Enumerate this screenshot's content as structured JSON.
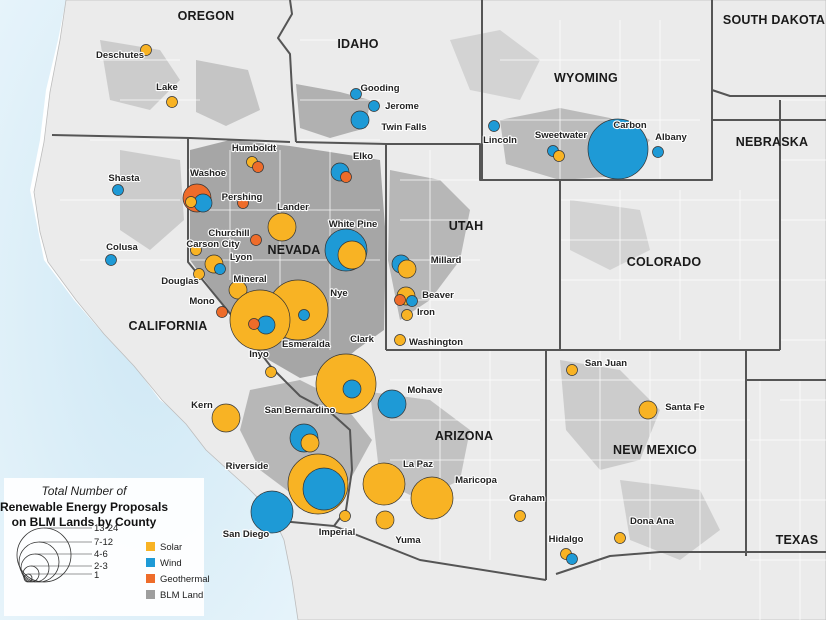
{
  "colors": {
    "solar": "#F8B324",
    "wind": "#1E9AD6",
    "geothermal": "#EE6C2A",
    "blm": "#9e9e9e",
    "ocean": "#cfe8f5",
    "land": "#ececec",
    "border": "#5a5a5a"
  },
  "states": [
    {
      "id": "oregon",
      "label": "OREGON"
    },
    {
      "id": "idaho",
      "label": "IDAHO"
    },
    {
      "id": "wyoming",
      "label": "WYOMING"
    },
    {
      "id": "south-dakota",
      "label": "SOUTH DAKOTA"
    },
    {
      "id": "nebraska",
      "label": "NEBRASKA"
    },
    {
      "id": "nevada",
      "label": "NEVADA"
    },
    {
      "id": "utah",
      "label": "UTAH"
    },
    {
      "id": "colorado",
      "label": "COLORADO"
    },
    {
      "id": "california",
      "label": "CALIFORNIA"
    },
    {
      "id": "arizona",
      "label": "ARIZONA"
    },
    {
      "id": "new-mexico",
      "label": "NEW MEXICO"
    },
    {
      "id": "texas",
      "label": "TEXAS"
    }
  ],
  "counties": [
    {
      "name": "Deschutes",
      "proposals": [
        {
          "type": "solar",
          "count": 1
        }
      ]
    },
    {
      "name": "Lake",
      "proposals": [
        {
          "type": "solar",
          "count": 1
        }
      ]
    },
    {
      "name": "Gooding",
      "proposals": [
        {
          "type": "wind",
          "count": 1
        }
      ]
    },
    {
      "name": "Jerome",
      "proposals": [
        {
          "type": "wind",
          "count": 1
        }
      ]
    },
    {
      "name": "Twin Falls",
      "proposals": [
        {
          "type": "wind",
          "count": 3
        }
      ]
    },
    {
      "name": "Lincoln",
      "proposals": [
        {
          "type": "wind",
          "count": 1
        }
      ]
    },
    {
      "name": "Sweetwater",
      "proposals": [
        {
          "type": "wind",
          "count": 1
        },
        {
          "type": "solar",
          "count": 1
        }
      ]
    },
    {
      "name": "Carbon",
      "proposals": [
        {
          "type": "wind",
          "count": 13
        }
      ]
    },
    {
      "name": "Albany",
      "proposals": [
        {
          "type": "wind",
          "count": 1
        }
      ]
    },
    {
      "name": "Humboldt",
      "proposals": [
        {
          "type": "solar",
          "count": 1
        },
        {
          "type": "geothermal",
          "count": 1
        }
      ]
    },
    {
      "name": "Elko",
      "proposals": [
        {
          "type": "wind",
          "count": 3
        },
        {
          "type": "geothermal",
          "count": 1
        }
      ]
    },
    {
      "name": "Shasta",
      "proposals": [
        {
          "type": "wind",
          "count": 1
        }
      ]
    },
    {
      "name": "Washoe",
      "proposals": [
        {
          "type": "solar",
          "count": 1
        },
        {
          "type": "wind",
          "count": 3
        },
        {
          "type": "geothermal",
          "count": 6
        }
      ]
    },
    {
      "name": "Pershing",
      "proposals": [
        {
          "type": "geothermal",
          "count": 1
        }
      ]
    },
    {
      "name": "Lander",
      "proposals": [
        {
          "type": "solar",
          "count": 4
        }
      ]
    },
    {
      "name": "Churchill",
      "proposals": [
        {
          "type": "geothermal",
          "count": 1
        }
      ]
    },
    {
      "name": "White Pine",
      "proposals": [
        {
          "type": "solar",
          "count": 5
        },
        {
          "type": "wind",
          "count": 7
        }
      ]
    },
    {
      "name": "Colusa",
      "proposals": [
        {
          "type": "wind",
          "count": 1
        }
      ]
    },
    {
      "name": "Carson City",
      "proposals": [
        {
          "type": "solar",
          "count": 1
        }
      ]
    },
    {
      "name": "Lyon",
      "proposals": [
        {
          "type": "solar",
          "count": 3
        },
        {
          "type": "wind",
          "count": 1
        }
      ]
    },
    {
      "name": "Millard",
      "proposals": [
        {
          "type": "solar",
          "count": 2
        },
        {
          "type": "wind",
          "count": 3
        }
      ]
    },
    {
      "name": "Douglas",
      "proposals": [
        {
          "type": "solar",
          "count": 1
        }
      ]
    },
    {
      "name": "Mineral",
      "proposals": [
        {
          "type": "solar",
          "count": 3
        }
      ]
    },
    {
      "name": "Nye",
      "proposals": [
        {
          "type": "solar",
          "count": 18
        },
        {
          "type": "wind",
          "count": 1
        }
      ]
    },
    {
      "name": "Beaver",
      "proposals": [
        {
          "type": "solar",
          "count": 3
        },
        {
          "type": "wind",
          "count": 1
        },
        {
          "type": "geothermal",
          "count": 1
        }
      ]
    },
    {
      "name": "Mono",
      "proposals": [
        {
          "type": "geothermal",
          "count": 1
        }
      ]
    },
    {
      "name": "Esmeralda",
      "proposals": [
        {
          "type": "solar",
          "count": 13
        },
        {
          "type": "wind",
          "count": 3
        },
        {
          "type": "geothermal",
          "count": 1
        }
      ]
    },
    {
      "name": "Iron",
      "proposals": [
        {
          "type": "solar",
          "count": 1
        }
      ]
    },
    {
      "name": "Washington",
      "proposals": [
        {
          "type": "solar",
          "count": 1
        }
      ]
    },
    {
      "name": "Inyo",
      "proposals": [
        {
          "type": "solar",
          "count": 1
        }
      ]
    },
    {
      "name": "Clark",
      "proposals": [
        {
          "type": "solar",
          "count": 24
        },
        {
          "type": "wind",
          "count": 2
        }
      ]
    },
    {
      "name": "Mohave",
      "proposals": [
        {
          "type": "wind",
          "count": 4
        }
      ]
    },
    {
      "name": "Kern",
      "proposals": [
        {
          "type": "solar",
          "count": 4
        }
      ]
    },
    {
      "name": "San Bernardino",
      "proposals": [
        {
          "type": "solar",
          "count": 3
        },
        {
          "type": "wind",
          "count": 6
        }
      ]
    },
    {
      "name": "Riverside",
      "proposals": [
        {
          "type": "solar",
          "count": 22
        },
        {
          "type": "wind",
          "count": 12
        }
      ]
    },
    {
      "name": "La Paz",
      "proposals": [
        {
          "type": "solar",
          "count": 7
        }
      ]
    },
    {
      "name": "Maricopa",
      "proposals": [
        {
          "type": "solar",
          "count": 8
        }
      ]
    },
    {
      "name": "San Diego",
      "proposals": [
        {
          "type": "wind",
          "count": 9
        }
      ]
    },
    {
      "name": "Imperial",
      "proposals": [
        {
          "type": "solar",
          "count": 1
        }
      ]
    },
    {
      "name": "Yuma",
      "proposals": [
        {
          "type": "solar",
          "count": 2
        }
      ]
    },
    {
      "name": "Graham",
      "proposals": [
        {
          "type": "solar",
          "count": 1
        }
      ]
    },
    {
      "name": "San Juan",
      "proposals": [
        {
          "type": "solar",
          "count": 1
        }
      ]
    },
    {
      "name": "Santa Fe",
      "proposals": [
        {
          "type": "solar",
          "count": 3
        }
      ]
    },
    {
      "name": "Dona Ana",
      "proposals": [
        {
          "type": "solar",
          "count": 1
        }
      ]
    },
    {
      "name": "Hidalgo",
      "proposals": [
        {
          "type": "solar",
          "count": 1
        },
        {
          "type": "wind",
          "count": 1
        }
      ]
    }
  ],
  "legend": {
    "title_line1": "Total Number of",
    "title_line2": "Renewable Energy Proposals",
    "title_line3": "on BLM Lands by County",
    "size_classes": [
      "13-24",
      "7-12",
      "4-6",
      "2-3",
      "1"
    ],
    "items": [
      {
        "label": "Solar",
        "color_key": "solar"
      },
      {
        "label": "Wind",
        "color_key": "wind"
      },
      {
        "label": "Geothermal",
        "color_key": "geothermal"
      },
      {
        "label": "BLM Land",
        "color_key": "blm"
      }
    ]
  }
}
